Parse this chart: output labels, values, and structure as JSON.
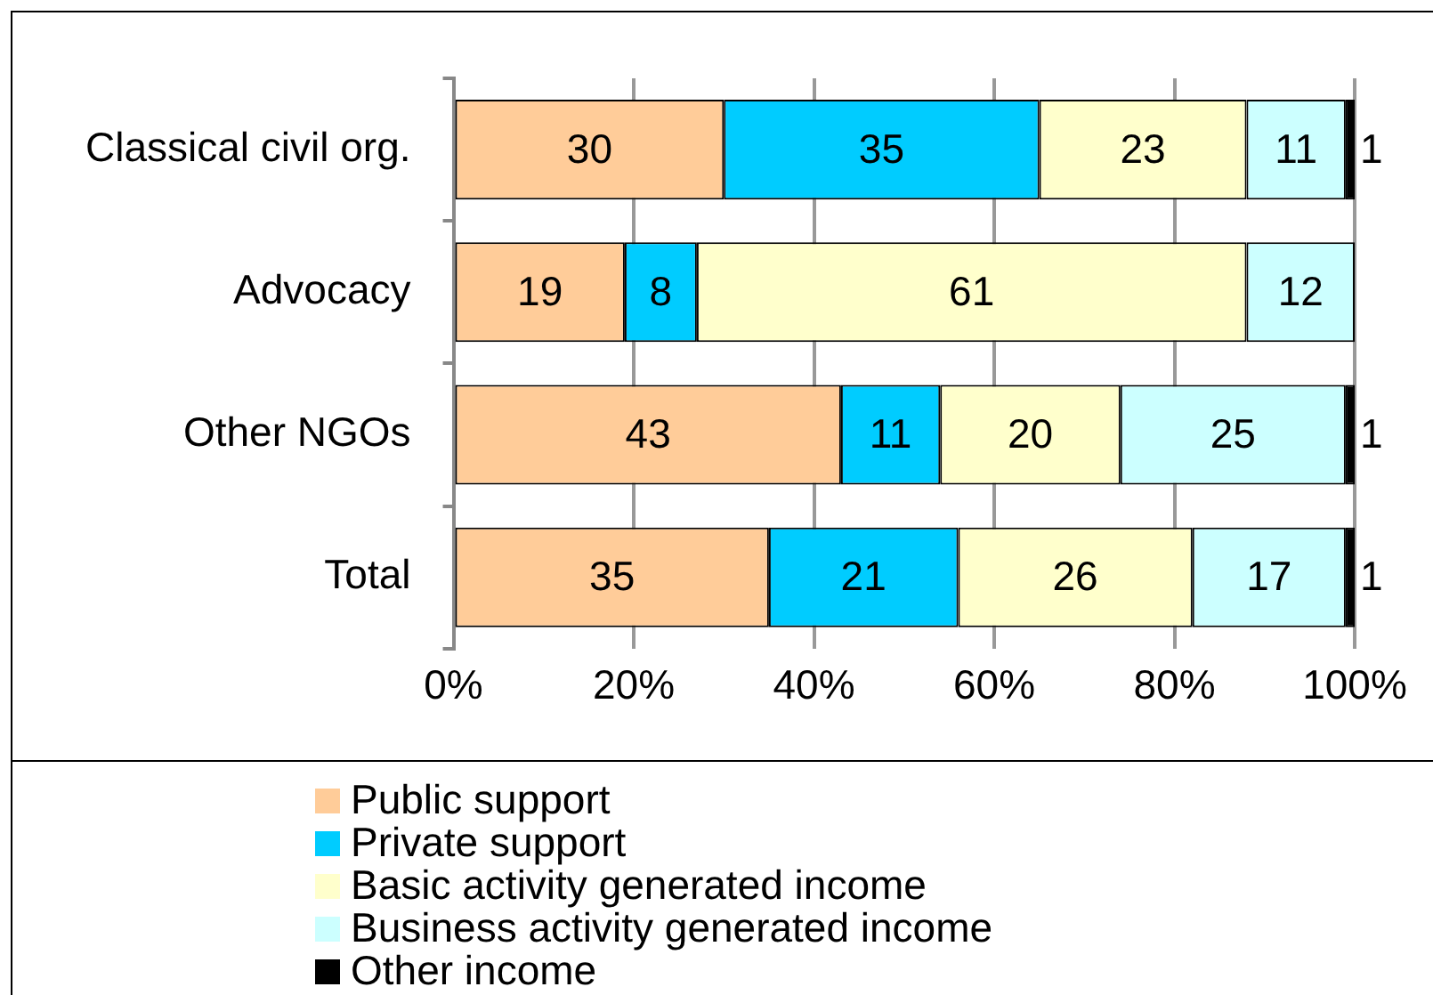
{
  "chart_data": {
    "type": "bar",
    "orientation": "horizontal",
    "stacked": true,
    "grid": "x",
    "legend": "bottom",
    "categories": [
      "Classical civil org.",
      "Advocacy",
      "Other NGOs",
      "Total"
    ],
    "xlim": [
      0,
      100
    ],
    "xticks": [
      {
        "value": 0,
        "label": "0%"
      },
      {
        "value": 20,
        "label": "20%"
      },
      {
        "value": 40,
        "label": "40%"
      },
      {
        "value": 60,
        "label": "60%"
      },
      {
        "value": 80,
        "label": "80%"
      },
      {
        "value": 100,
        "label": "100%"
      }
    ],
    "series": [
      {
        "name": "Public support",
        "color": "#ffcc99",
        "values": [
          30,
          19,
          43,
          35
        ],
        "value_labels": [
          "30",
          "19",
          "43",
          "35"
        ]
      },
      {
        "name": "Private support",
        "color": "#00ccff",
        "values": [
          35,
          8,
          11,
          21
        ],
        "value_labels": [
          "35",
          "8",
          "11",
          "21"
        ]
      },
      {
        "name": "Basic activity generated income",
        "color": "#ffffcc",
        "values": [
          23,
          61,
          20,
          26
        ],
        "value_labels": [
          "23",
          "61",
          "20",
          "26"
        ]
      },
      {
        "name": "Business activity generated income",
        "color": "#ccffff",
        "values": [
          11,
          12,
          25,
          17
        ],
        "value_labels": [
          "11",
          "12",
          "25",
          "17"
        ]
      },
      {
        "name": "Other income",
        "color": "#000000",
        "values": [
          1,
          0,
          1,
          1
        ],
        "value_labels": [
          "1",
          null,
          "1",
          "1"
        ]
      }
    ]
  }
}
